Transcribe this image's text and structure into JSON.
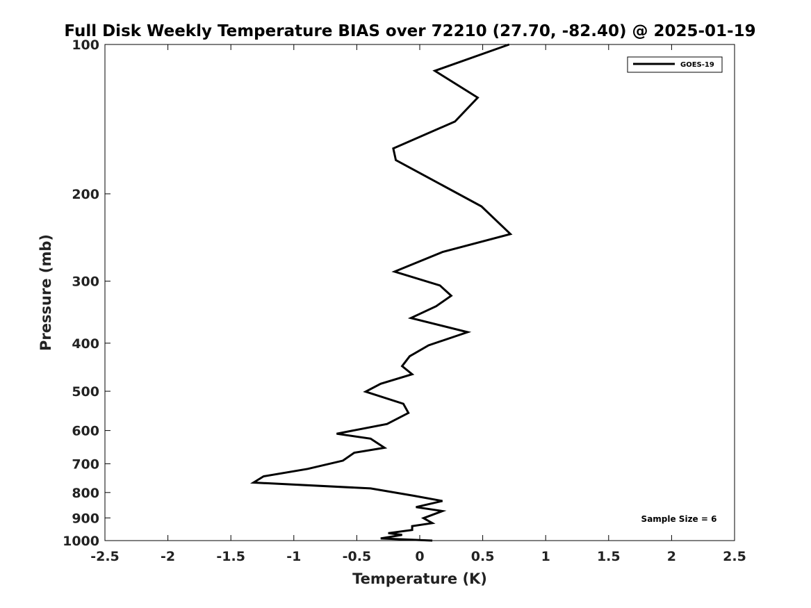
{
  "chart_data": {
    "type": "line",
    "title": "Full Disk Weekly Temperature BIAS over 72210 (27.70, -82.40) @ 2025-01-19",
    "xlabel": "Temperature (K)",
    "ylabel": "Pressure (mb)",
    "xlim": [
      -2.5,
      2.5
    ],
    "ylim": [
      1000,
      100
    ],
    "y_scale": "log",
    "y_inverted": true,
    "grid": false,
    "x_ticks": [
      -2.5,
      -2,
      -1.5,
      -1,
      -0.5,
      0,
      0.5,
      1,
      1.5,
      2,
      2.5
    ],
    "x_tick_labels": [
      "-2.5",
      "-2",
      "-1.5",
      "-1",
      "-0.5",
      "0",
      "0.5",
      "1",
      "1.5",
      "2",
      "2.5"
    ],
    "y_ticks": [
      100,
      200,
      300,
      400,
      500,
      600,
      700,
      800,
      900,
      1000
    ],
    "y_tick_labels": [
      "100",
      "200",
      "300",
      "400",
      "500",
      "600",
      "700",
      "800",
      "900",
      "1000"
    ],
    "legend": {
      "position": "top-right",
      "entries": [
        "GOES-19"
      ]
    },
    "annotation": "Sample Size = 6",
    "series": [
      {
        "name": "GOES-19",
        "color": "#000000",
        "x": [
          0.71,
          0.12,
          0.46,
          0.28,
          -0.21,
          -0.19,
          0.49,
          0.72,
          0.18,
          -0.2,
          0.16,
          0.25,
          0.13,
          -0.07,
          0.38,
          0.07,
          -0.08,
          -0.14,
          -0.06,
          -0.31,
          -0.43,
          -0.13,
          -0.09,
          -0.26,
          -0.66,
          -0.39,
          -0.28,
          -0.52,
          -0.61,
          -0.89,
          -1.24,
          -1.32,
          -0.39,
          -0.05,
          0.18,
          -0.03,
          0.18,
          0.03,
          0.1,
          -0.06,
          -0.06,
          -0.25,
          -0.14,
          -0.31,
          0.1
        ],
        "y": [
          100,
          113,
          128,
          143,
          162,
          171,
          212,
          241,
          262,
          287,
          306,
          321,
          337,
          356,
          380,
          404,
          425,
          445,
          462,
          483,
          501,
          530,
          553,
          582,
          609,
          623,
          650,
          665,
          690,
          717,
          742,
          764,
          785,
          812,
          832,
          856,
          872,
          901,
          922,
          935,
          952,
          966,
          974,
          990,
          1000
        ]
      }
    ]
  }
}
